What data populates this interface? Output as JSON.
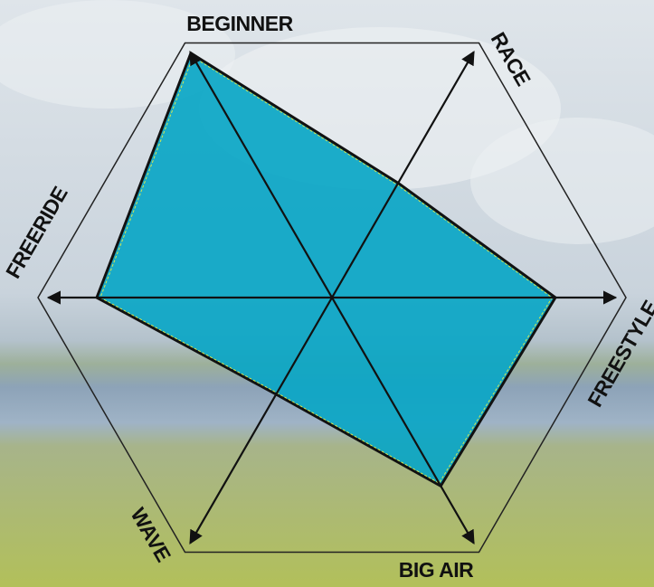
{
  "chart_data": {
    "type": "radar",
    "categories": [
      "BEGINNER",
      "RACE",
      "FREESTYLE",
      "BIG AIR",
      "WAVE",
      "FREERIDE"
    ],
    "values": [
      9.6,
      4.5,
      7.6,
      7.4,
      3.8,
      8.0
    ],
    "rlim": [
      0,
      10
    ],
    "color": "#0aa6c6"
  }
}
